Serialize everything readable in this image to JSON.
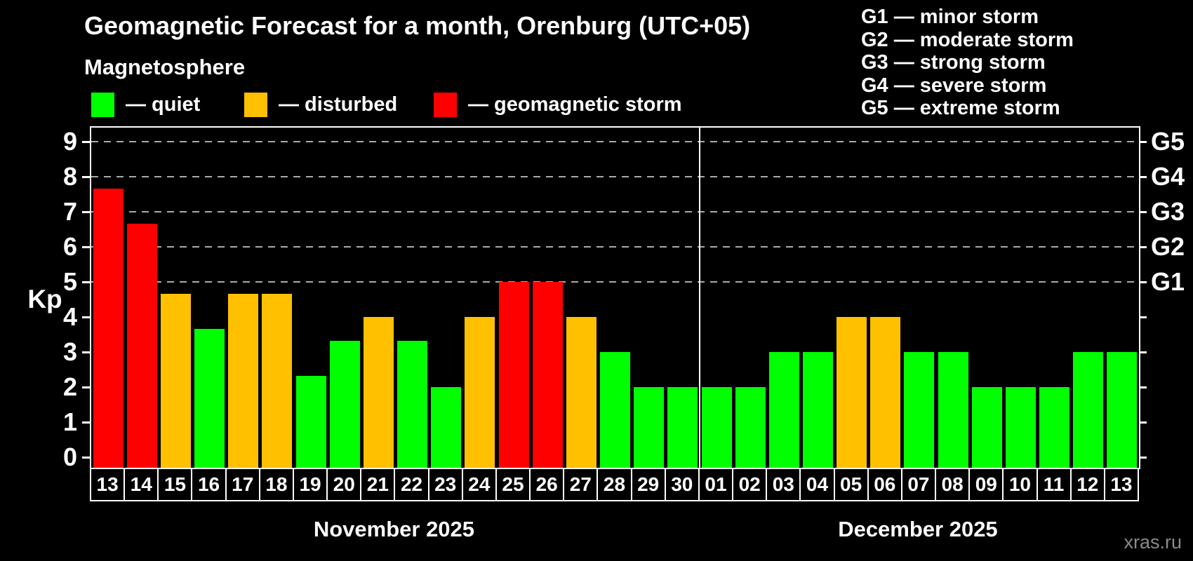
{
  "title": "Geomagnetic Forecast for a month, Orenburg (UTC+05)",
  "subtitle": "Magnetosphere",
  "legend": {
    "items": [
      {
        "label": "— quiet",
        "status": "quiet",
        "color": "#00ff00"
      },
      {
        "label": "— disturbed",
        "status": "disturbed",
        "color": "#ffc000"
      },
      {
        "label": "— geomagnetic storm",
        "status": "storm",
        "color": "#ff0000"
      }
    ]
  },
  "g_legend": [
    "G1 — minor storm",
    "G2 — moderate storm",
    "G3 — strong storm",
    "G4 — severe storm",
    "G5 — extreme storm"
  ],
  "axis": {
    "ylabel": "Kp",
    "yticks": [
      0,
      1,
      2,
      3,
      4,
      5,
      6,
      7,
      8,
      9
    ],
    "g_labels": [
      {
        "label": "G1",
        "kp": 5
      },
      {
        "label": "G2",
        "kp": 6
      },
      {
        "label": "G3",
        "kp": 7
      },
      {
        "label": "G4",
        "kp": 8
      },
      {
        "label": "G5",
        "kp": 9
      }
    ]
  },
  "watermark": "xras.ru",
  "chart_data": {
    "type": "bar",
    "title": "Geomagnetic Forecast for a month, Orenburg (UTC+05)",
    "ylabel": "Kp",
    "ylim": [
      0,
      9
    ],
    "grid_levels": [
      5,
      6,
      7,
      8,
      9
    ],
    "months": [
      {
        "label": "November 2025",
        "days": [
          "13",
          "14",
          "15",
          "16",
          "17",
          "18",
          "19",
          "20",
          "21",
          "22",
          "23",
          "24",
          "25",
          "26",
          "27",
          "28",
          "29",
          "30"
        ]
      },
      {
        "label": "December 2025",
        "days": [
          "01",
          "02",
          "03",
          "04",
          "05",
          "06",
          "07",
          "08",
          "09",
          "10",
          "11",
          "12",
          "13"
        ]
      }
    ],
    "categories": [
      "13",
      "14",
      "15",
      "16",
      "17",
      "18",
      "19",
      "20",
      "21",
      "22",
      "23",
      "24",
      "25",
      "26",
      "27",
      "28",
      "29",
      "30",
      "01",
      "02",
      "03",
      "04",
      "05",
      "06",
      "07",
      "08",
      "09",
      "10",
      "11",
      "12",
      "13"
    ],
    "values": [
      7.67,
      6.67,
      4.67,
      3.67,
      4.67,
      4.67,
      2.33,
      3.33,
      4,
      3.33,
      2,
      4,
      5,
      5,
      4,
      3,
      2,
      2,
      2,
      2,
      3,
      3,
      4,
      4,
      3,
      3,
      2,
      2,
      2,
      3,
      3
    ],
    "statuses": [
      "storm",
      "storm",
      "disturbed",
      "quiet",
      "disturbed",
      "disturbed",
      "quiet",
      "quiet",
      "disturbed",
      "quiet",
      "quiet",
      "disturbed",
      "storm",
      "storm",
      "disturbed",
      "quiet",
      "quiet",
      "quiet",
      "quiet",
      "quiet",
      "quiet",
      "quiet",
      "disturbed",
      "disturbed",
      "quiet",
      "quiet",
      "quiet",
      "quiet",
      "quiet",
      "quiet",
      "quiet"
    ],
    "colors": {
      "quiet": "#00ff00",
      "disturbed": "#ffc000",
      "storm": "#ff0000"
    }
  }
}
